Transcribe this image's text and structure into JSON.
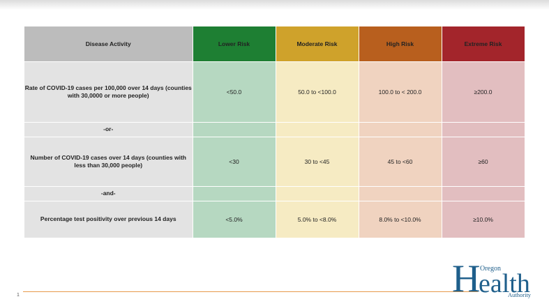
{
  "header": {
    "activity": "Disease Activity",
    "lower": "Lower Risk",
    "moderate": "Moderate Risk",
    "high": "High Risk",
    "extreme": "Extreme Risk"
  },
  "rows": [
    {
      "label": "Rate of COVID-19 cases per 100,000 over 14 days (counties with 30,0000 or more people)",
      "lower": "<50.0",
      "moderate": "50.0 to <100.0",
      "high": "100.0 to < 200.0",
      "extreme": "≥200.0"
    },
    {
      "label": "-or-"
    },
    {
      "label": "Number of COVID-19 cases over 14 days (counties with less than 30,000 people)",
      "lower": "<30",
      "moderate": "30 to <45",
      "high": "45 to <60",
      "extreme": "≥60"
    },
    {
      "label": "-and-"
    },
    {
      "label": "Percentage test positivity over previous 14 days",
      "lower": "<5.0%",
      "moderate": "5.0% to <8.0%",
      "high": "8.0% to <10.0%",
      "extreme": "≥10.0%"
    }
  ],
  "footer": {
    "page_number": "1"
  },
  "logo": {
    "line1": "Oregon",
    "main_h": "H",
    "main_rest": "ealth",
    "line3": "Authority"
  },
  "colors": {
    "lower": "#1e7f33",
    "moderate": "#cfa22b",
    "high": "#b85f1e",
    "extreme": "#a3252b"
  }
}
